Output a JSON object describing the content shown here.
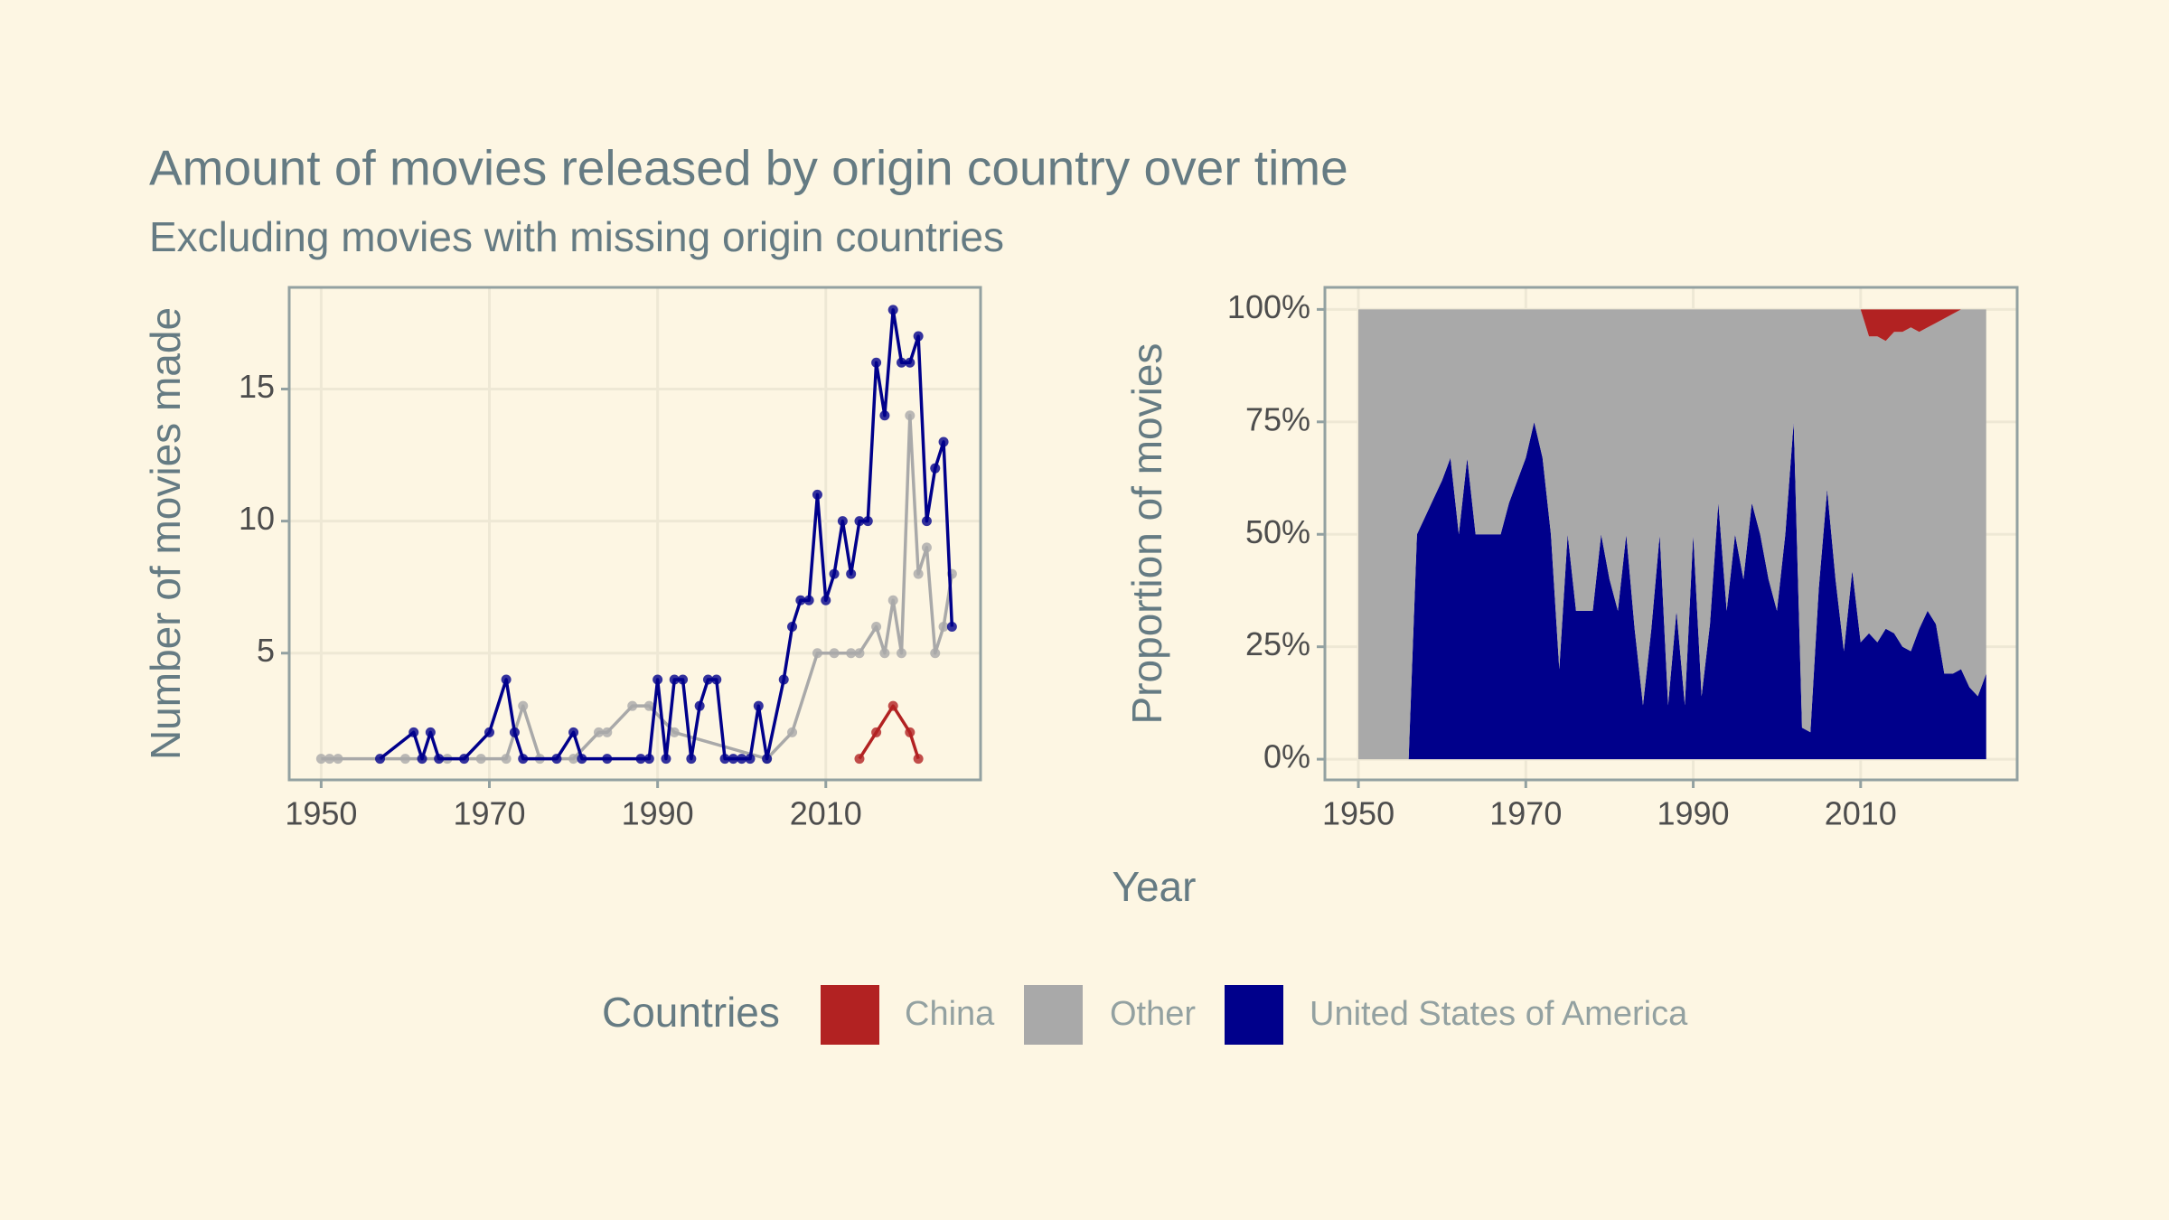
{
  "title": "Amount of movies released by origin country over time",
  "subtitle": "Excluding movies with missing origin countries",
  "x_label": "Year",
  "legend": {
    "title": "Countries",
    "position": "bottom"
  },
  "chart_data": [
    {
      "type": "line",
      "y_label": "Number of movies made",
      "xlim": [
        1946.2,
        2028.4
      ],
      "ylim": [
        0.2,
        18.85
      ],
      "xticks": [
        1950,
        1970,
        1990,
        2010
      ],
      "yticks": [
        5,
        10,
        15
      ],
      "grid": true,
      "series": [
        {
          "name": "Other",
          "color": "#a9a9a9",
          "x": [
            1950,
            1951,
            1952,
            1960,
            1965,
            1969,
            1972,
            1974,
            1976,
            1980,
            1983,
            1984,
            1987,
            1989,
            1992,
            2003,
            2006,
            2009,
            2011,
            2013,
            2014,
            2016,
            2017,
            2018,
            2019,
            2020,
            2021,
            2022,
            2023,
            2024,
            2025
          ],
          "values": [
            1,
            1,
            1,
            1,
            1,
            1,
            1,
            3,
            1,
            1,
            2,
            2,
            3,
            3,
            2,
            1,
            2,
            5,
            5,
            5,
            5,
            6,
            5,
            7,
            5,
            14,
            8,
            9,
            5,
            6,
            8
          ]
        },
        {
          "name": "China",
          "color": "#b22222",
          "x": [
            2014,
            2016,
            2018,
            2020,
            2021
          ],
          "values": [
            1,
            2,
            3,
            2,
            1
          ]
        },
        {
          "name": "United States of America",
          "color": "#00008b",
          "x": [
            1957,
            1961,
            1962,
            1963,
            1964,
            1967,
            1970,
            1972,
            1973,
            1974,
            1978,
            1980,
            1981,
            1984,
            1988,
            1989,
            1990,
            1991,
            1992,
            1993,
            1994,
            1995,
            1996,
            1997,
            1998,
            1999,
            2000,
            2001,
            2002,
            2003,
            2005,
            2006,
            2007,
            2008,
            2009,
            2010,
            2011,
            2012,
            2013,
            2014,
            2015,
            2016,
            2017,
            2018,
            2019,
            2020,
            2021,
            2022,
            2023,
            2024,
            2025
          ],
          "values": [
            1,
            2,
            1,
            2,
            1,
            1,
            2,
            4,
            2,
            1,
            1,
            2,
            1,
            1,
            1,
            1,
            4,
            1,
            4,
            4,
            1,
            3,
            4,
            4,
            1,
            1,
            1,
            1,
            3,
            1,
            4,
            6,
            7,
            7,
            11,
            7,
            8,
            10,
            8,
            10,
            10,
            16,
            14,
            18,
            16,
            16,
            17,
            10,
            12,
            13,
            6
          ]
        }
      ]
    },
    {
      "type": "area",
      "stacked": true,
      "y_label": "Proportion of movies",
      "xlim": [
        1946,
        2028.7
      ],
      "ylim": [
        -4.6,
        104.9
      ],
      "xticks": [
        1950,
        1970,
        1990,
        2010
      ],
      "yticks": [
        {
          "value": 0,
          "label": "0%"
        },
        {
          "value": 25,
          "label": "25%"
        },
        {
          "value": 50,
          "label": "50%"
        },
        {
          "value": 75,
          "label": "75%"
        },
        {
          "value": 100,
          "label": "100%"
        }
      ],
      "grid": true,
      "x": [
        1950,
        1951,
        1952,
        1953,
        1954,
        1955,
        1956,
        1957,
        1958,
        1959,
        1960,
        1961,
        1962,
        1963,
        1964,
        1965,
        1966,
        1967,
        1968,
        1969,
        1970,
        1971,
        1972,
        1973,
        1974,
        1975,
        1976,
        1977,
        1978,
        1979,
        1980,
        1981,
        1982,
        1983,
        1984,
        1985,
        1986,
        1987,
        1988,
        1989,
        1990,
        1991,
        1992,
        1993,
        1994,
        1995,
        1996,
        1997,
        1998,
        1999,
        2000,
        2001,
        2002,
        2003,
        2004,
        2005,
        2006,
        2007,
        2008,
        2009,
        2010,
        2011,
        2012,
        2013,
        2014,
        2015,
        2016,
        2017,
        2018,
        2019,
        2020,
        2021,
        2022,
        2023,
        2024,
        2025
      ],
      "series": [
        {
          "name": "China",
          "color": "#b22222",
          "values": [
            0,
            0,
            0,
            0,
            0,
            0,
            0,
            0,
            0,
            0,
            0,
            0,
            0,
            0,
            0,
            0,
            0,
            0,
            0,
            0,
            0,
            0,
            0,
            0,
            0,
            0,
            0,
            0,
            0,
            0,
            0,
            0,
            0,
            0,
            0,
            0,
            0,
            0,
            0,
            0,
            0,
            0,
            0,
            0,
            0,
            0,
            0,
            0,
            0,
            0,
            0,
            0,
            0,
            0,
            0,
            0,
            0,
            0,
            0,
            0,
            0,
            6,
            6,
            7,
            5,
            5,
            4,
            5,
            4,
            3,
            2,
            1,
            0,
            0,
            0,
            0
          ]
        },
        {
          "name": "Other",
          "color": "#a9a9a9",
          "values": [
            100,
            100,
            100,
            100,
            100,
            100,
            100,
            50,
            46,
            42,
            38,
            33,
            50,
            33,
            50,
            50,
            50,
            50,
            43,
            38,
            33,
            25,
            33,
            50,
            80,
            50,
            67,
            67,
            67,
            50,
            60,
            67,
            50,
            71,
            88,
            71,
            50,
            88,
            67,
            88,
            50,
            86,
            70,
            43,
            67,
            50,
            60,
            43,
            50,
            60,
            67,
            50,
            25,
            93,
            94,
            62,
            40,
            60,
            76,
            58,
            74,
            66,
            68,
            64,
            67,
            70,
            72,
            66,
            63,
            67,
            79,
            80,
            80,
            84,
            86,
            81
          ]
        },
        {
          "name": "United States of America",
          "color": "#00008b",
          "values": [
            0,
            0,
            0,
            0,
            0,
            0,
            0,
            50,
            54,
            58,
            62,
            67,
            50,
            67,
            50,
            50,
            50,
            50,
            57,
            62,
            67,
            75,
            67,
            50,
            20,
            50,
            33,
            33,
            33,
            50,
            40,
            33,
            50,
            29,
            12,
            29,
            50,
            12,
            33,
            12,
            50,
            14,
            30,
            57,
            33,
            50,
            40,
            57,
            50,
            40,
            33,
            50,
            75,
            7,
            6,
            38,
            60,
            40,
            24,
            42,
            26,
            28,
            26,
            29,
            28,
            25,
            24,
            29,
            33,
            30,
            19,
            19,
            20,
            16,
            14,
            19
          ]
        }
      ]
    }
  ]
}
